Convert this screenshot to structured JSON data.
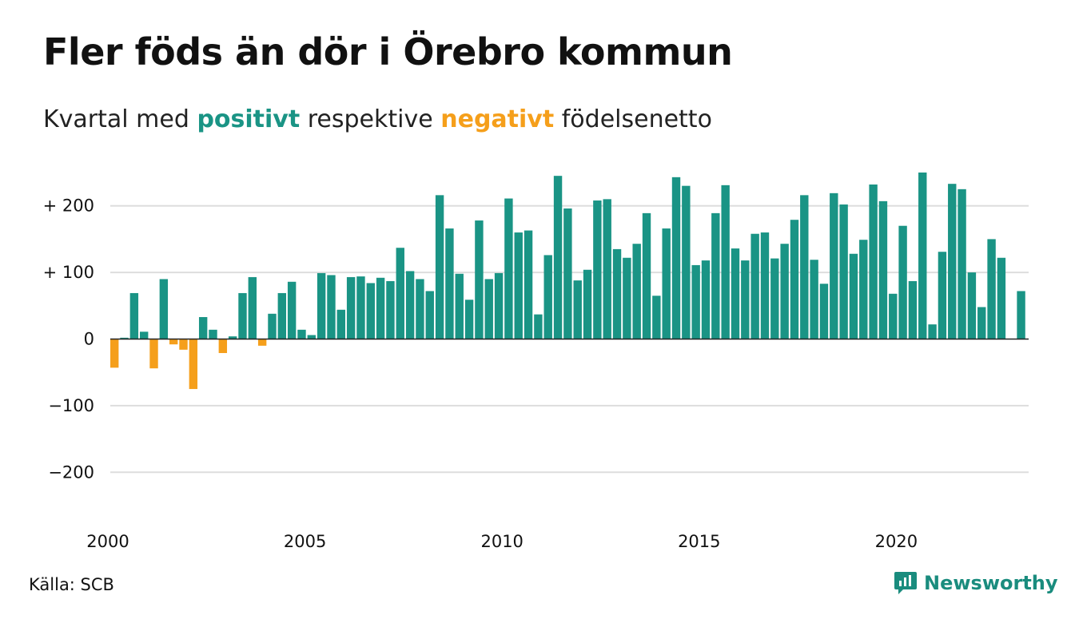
{
  "header": {
    "title": "Fler föds än dör i Örebro kommun",
    "subtitle_before": "Kvartal med",
    "subtitle_positive": "positivt",
    "subtitle_middle": "respektive",
    "subtitle_negative": "negativt",
    "subtitle_after": "födelsenetto"
  },
  "footer": {
    "source": "Källa: SCB",
    "brand": "Newsworthy"
  },
  "colors": {
    "positive": "#1a9485",
    "negative": "#f59f1b",
    "grid": "#dddddd",
    "brand": "#1a8c7e"
  },
  "chart_data": {
    "type": "bar",
    "x_start": 2000,
    "periods_per_year": 4,
    "x_ticks": [
      "2000",
      "2005",
      "2010",
      "2015",
      "2020"
    ],
    "y_ticks": [
      {
        "value": 200,
        "label": "+ 200"
      },
      {
        "value": 100,
        "label": "+ 100"
      },
      {
        "value": 0,
        "label": "0"
      },
      {
        "value": -100,
        "label": "−100"
      },
      {
        "value": -200,
        "label": "−200"
      }
    ],
    "ylim": [
      -250,
      250
    ],
    "grid": true,
    "values": [
      -43,
      2,
      69,
      11,
      -44,
      90,
      -8,
      -16,
      -75,
      33,
      14,
      -21,
      4,
      69,
      93,
      -10,
      38,
      69,
      86,
      14,
      6,
      99,
      96,
      44,
      93,
      94,
      84,
      92,
      87,
      137,
      102,
      90,
      72,
      216,
      166,
      98,
      59,
      178,
      90,
      99,
      211,
      160,
      163,
      37,
      126,
      245,
      196,
      88,
      104,
      208,
      210,
      135,
      122,
      143,
      189,
      65,
      166,
      243,
      230,
      111,
      118,
      189,
      231,
      136,
      118,
      158,
      160,
      121,
      143,
      179,
      216,
      119,
      83,
      219,
      202,
      128,
      149,
      232,
      207,
      68,
      170,
      87,
      250,
      22,
      131,
      233,
      225,
      100,
      48,
      150,
      122,
      null,
      72
    ]
  }
}
